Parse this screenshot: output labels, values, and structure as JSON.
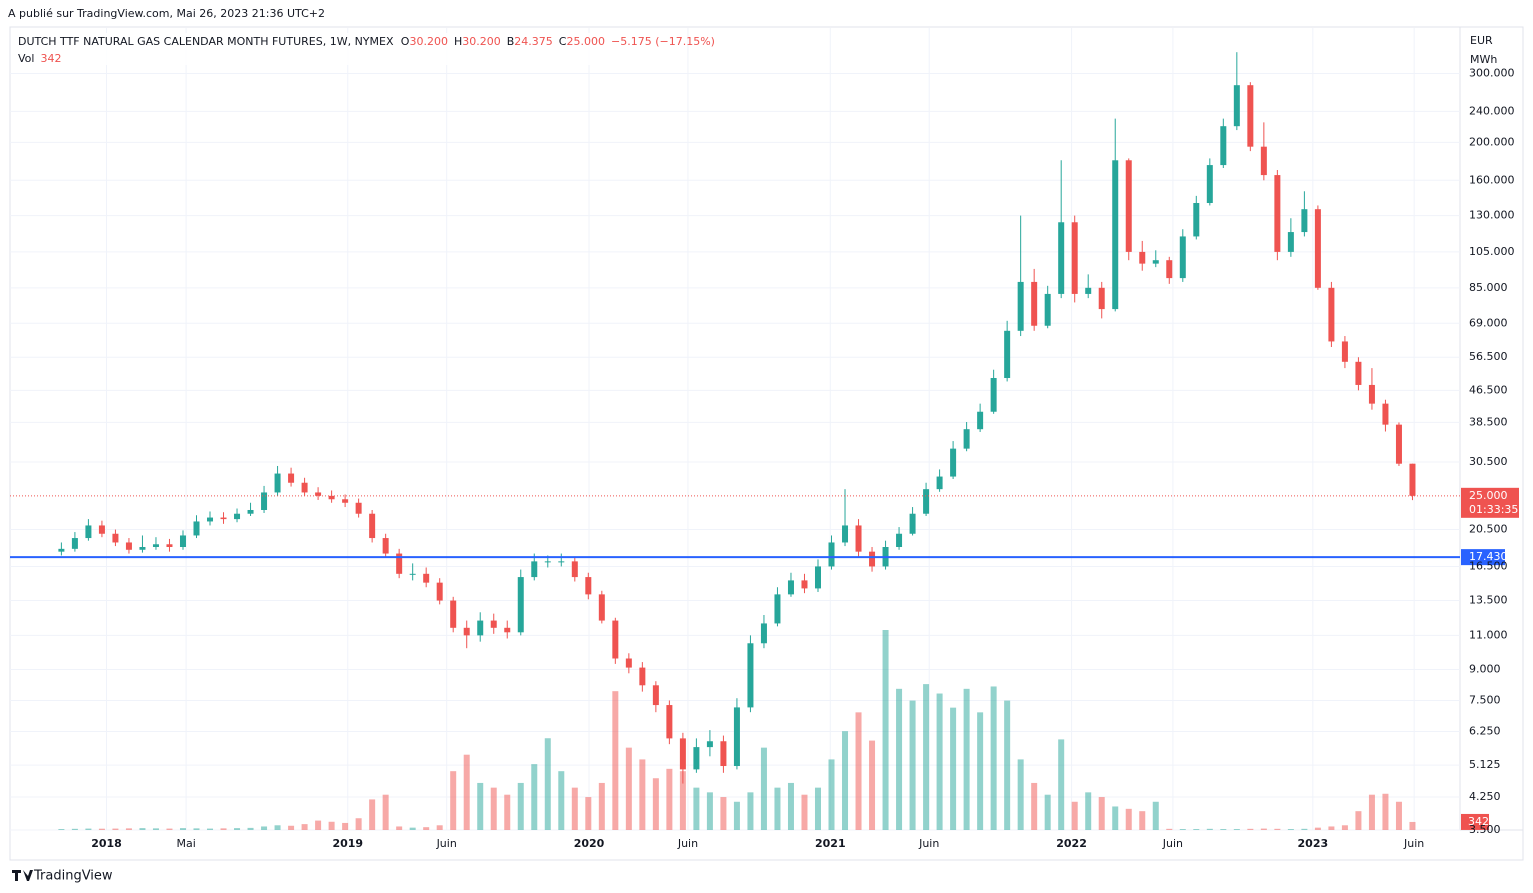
{
  "header": {
    "published": "A publié sur TradingView.com, Mai 26, 2023 21:36 UTC+2",
    "footer": "TradingView"
  },
  "chart_data": {
    "type": "candlestick",
    "title": "DUTCH TTF NATURAL GAS CALENDAR MONTH FUTURES, 1W, NYMEX",
    "quote": [
      {
        "key": "O",
        "text": "30.200"
      },
      {
        "key": "H",
        "text": "30.200"
      },
      {
        "key": "B",
        "text": "24.375"
      },
      {
        "key": "C",
        "text": "25.000"
      }
    ],
    "change": "−5.175 (−17.15%)",
    "volume_label": "Vol",
    "currency": "EUR",
    "unit": "MWh",
    "log_scale": true,
    "grid": true,
    "up_color": "#26a69a",
    "down_color": "#ef5350",
    "last_price": {
      "value": 25,
      "label": "25.000",
      "countdown": "01:33:35"
    },
    "hline": {
      "value": 17.43,
      "label": "17.430",
      "color": "#2962ff"
    },
    "xlim": [
      2017.6,
      2023.61
    ],
    "xticks": [
      {
        "value": 2018,
        "label": "2018"
      },
      {
        "value": 2018.33,
        "label": "Mai"
      },
      {
        "value": 2019,
        "label": "2019"
      },
      {
        "value": 2019.41,
        "label": "Juin"
      },
      {
        "value": 2020,
        "label": "2020"
      },
      {
        "value": 2020.41,
        "label": "Juin"
      },
      {
        "value": 2021,
        "label": "2021"
      },
      {
        "value": 2021.41,
        "label": "Juin"
      },
      {
        "value": 2022,
        "label": "2022"
      },
      {
        "value": 2022.42,
        "label": "Juin"
      },
      {
        "value": 2023,
        "label": "2023"
      },
      {
        "value": 2023.42,
        "label": "Juin"
      }
    ],
    "ylim": [
      3.5,
      392
    ],
    "yticks": [
      {
        "value": 300,
        "label": "300.000"
      },
      {
        "value": 240,
        "label": "240.000"
      },
      {
        "value": 200,
        "label": "200.000"
      },
      {
        "value": 160,
        "label": "160.000"
      },
      {
        "value": 130,
        "label": "130.000"
      },
      {
        "value": 105,
        "label": "105.000"
      },
      {
        "value": 85,
        "label": "85.000"
      },
      {
        "value": 69,
        "label": "69.000"
      },
      {
        "value": 56.5,
        "label": "56.500"
      },
      {
        "value": 46.5,
        "label": "46.500"
      },
      {
        "value": 38.5,
        "label": "38.500"
      },
      {
        "value": 30.5,
        "label": "30.500"
      },
      {
        "value": 20.5,
        "label": "20.500"
      },
      {
        "value": 16.5,
        "label": "16.500"
      },
      {
        "value": 13.5,
        "label": "13.500"
      },
      {
        "value": 11,
        "label": "11.000"
      },
      {
        "value": 9,
        "label": "9.000"
      },
      {
        "value": 7.5,
        "label": "7.500"
      },
      {
        "value": 6.25,
        "label": "6.250"
      },
      {
        "value": 5.125,
        "label": "5.125"
      },
      {
        "value": 4.25,
        "label": "4.250"
      },
      {
        "value": 3.5,
        "label": "3.500"
      }
    ],
    "x": [
      2017.813,
      2017.869,
      2017.925,
      2017.981,
      2018.037,
      2018.093,
      2018.149,
      2018.205,
      2018.261,
      2018.317,
      2018.373,
      2018.429,
      2018.485,
      2018.541,
      2018.597,
      2018.653,
      2018.709,
      2018.765,
      2018.821,
      2018.877,
      2018.933,
      2018.989,
      2019.045,
      2019.101,
      2019.157,
      2019.213,
      2019.269,
      2019.325,
      2019.381,
      2019.437,
      2019.493,
      2019.549,
      2019.605,
      2019.661,
      2019.717,
      2019.773,
      2019.829,
      2019.885,
      2019.941,
      2019.997,
      2020.053,
      2020.109,
      2020.165,
      2020.221,
      2020.277,
      2020.333,
      2020.389,
      2020.445,
      2020.501,
      2020.557,
      2020.613,
      2020.669,
      2020.725,
      2020.781,
      2020.837,
      2020.893,
      2020.949,
      2021.005,
      2021.061,
      2021.117,
      2021.173,
      2021.229,
      2021.285,
      2021.341,
      2021.397,
      2021.453,
      2021.509,
      2021.565,
      2021.621,
      2021.677,
      2021.733,
      2021.789,
      2021.845,
      2021.901,
      2021.957,
      2022.013,
      2022.069,
      2022.125,
      2022.181,
      2022.237,
      2022.293,
      2022.349,
      2022.405,
      2022.461,
      2022.517,
      2022.573,
      2022.629,
      2022.685,
      2022.741,
      2022.797,
      2022.853,
      2022.909,
      2022.965,
      2023.021,
      2023.077,
      2023.133,
      2023.189,
      2023.245,
      2023.301,
      2023.357,
      2023.413
    ],
    "open": [
      18,
      18.3,
      19.5,
      21,
      20,
      19,
      18.2,
      18.5,
      18.8,
      18.5,
      19.8,
      21.5,
      22,
      21.8,
      22.5,
      23,
      25.5,
      28.5,
      27,
      25.5,
      25,
      24.5,
      24,
      22.5,
      19.5,
      17.8,
      15.8,
      15.8,
      15,
      13.5,
      11.5,
      11,
      12,
      11.5,
      11.2,
      15.5,
      17,
      17,
      17,
      15.5,
      14,
      12,
      9.6,
      9.1,
      8.2,
      7.3,
      6,
      5,
      5.7,
      5.9,
      5.1,
      7.2,
      10.5,
      11.8,
      14,
      15.2,
      14.5,
      16.5,
      19,
      21,
      18,
      16.5,
      18.5,
      20,
      22.5,
      26,
      28,
      33,
      37,
      41,
      50,
      66,
      88,
      68,
      82,
      125,
      82,
      85,
      75,
      180,
      105,
      98,
      100,
      90,
      115,
      140,
      175,
      220,
      280,
      195,
      165,
      105,
      118,
      135,
      85,
      62,
      55,
      48,
      43,
      38,
      30.2
    ],
    "high": [
      19,
      20.2,
      21.8,
      21.6,
      20.5,
      19.5,
      19.8,
      19.6,
      19.4,
      20.4,
      22.3,
      22.8,
      22.7,
      23.2,
      24,
      26.5,
      29.8,
      29.5,
      27.8,
      26.3,
      25.8,
      25.2,
      24.6,
      23,
      20,
      18.3,
      16.8,
      16.4,
      15.4,
      13.8,
      12,
      12.6,
      12.5,
      12,
      16.2,
      17.8,
      17.6,
      17.8,
      17.4,
      15.9,
      14.3,
      12.2,
      9.9,
      9.4,
      8.4,
      7.5,
      6.2,
      6,
      6.3,
      6.1,
      7.6,
      11,
      12.4,
      14.6,
      15.9,
      15.8,
      17.2,
      19.8,
      26,
      21.8,
      18.5,
      19.2,
      20.8,
      23.4,
      27,
      29.2,
      34.5,
      38.6,
      43,
      52.5,
      70,
      130,
      95,
      86,
      180,
      130,
      92,
      88,
      230,
      182,
      112,
      106,
      102,
      120,
      146,
      182,
      230,
      340,
      285,
      225,
      170,
      128,
      150,
      138,
      88,
      64,
      56.5,
      53,
      44,
      38.5,
      30.2
    ],
    "low": [
      17.6,
      18,
      19.2,
      19.6,
      18.6,
      17.8,
      17.9,
      18.2,
      18,
      18.2,
      19.5,
      21,
      21.2,
      21.4,
      22.2,
      22.6,
      25,
      26.4,
      25,
      24.4,
      24,
      23.4,
      22,
      19,
      17.4,
      15.4,
      15.2,
      14.6,
      13.2,
      11.2,
      10.2,
      10.6,
      11.1,
      10.8,
      11,
      15.2,
      16.4,
      16.5,
      15.1,
      13.6,
      11.8,
      9.3,
      8.8,
      7.9,
      7,
      5.8,
      4.6,
      4.9,
      5.4,
      4.9,
      5,
      7,
      10.2,
      11.6,
      13.8,
      14.1,
      14.2,
      16.2,
      18.6,
      17.5,
      16,
      16.2,
      18.2,
      19.8,
      22.2,
      25.6,
      27.6,
      32.5,
      36.4,
      40.5,
      49,
      64,
      66,
      67,
      80,
      78,
      80,
      71,
      74,
      100,
      94,
      96,
      87,
      88,
      113,
      138,
      172,
      215,
      190,
      160,
      100,
      102,
      115,
      84,
      60,
      53,
      46.5,
      41.5,
      36.5,
      29.8,
      24.375
    ],
    "close": [
      18.3,
      19.5,
      21,
      20,
      19,
      18.2,
      18.5,
      18.8,
      18.5,
      19.8,
      21.5,
      22,
      21.8,
      22.5,
      23,
      25.5,
      28.5,
      27,
      25.5,
      25,
      24.5,
      24,
      22.5,
      19.5,
      17.8,
      15.8,
      15.8,
      15,
      13.5,
      11.5,
      11,
      12,
      11.5,
      11.2,
      15.5,
      17,
      17,
      17,
      15.5,
      14,
      12,
      9.6,
      9.1,
      8.2,
      7.3,
      6,
      5,
      5.7,
      5.9,
      5.1,
      7.2,
      10.5,
      11.8,
      14,
      15.2,
      14.5,
      16.5,
      19,
      21,
      18,
      16.5,
      18.5,
      20,
      22.5,
      26,
      28,
      33,
      37,
      41,
      50,
      66,
      88,
      68,
      82,
      125,
      82,
      85,
      75,
      180,
      105,
      98,
      100,
      90,
      115,
      140,
      175,
      220,
      280,
      195,
      165,
      105,
      118,
      135,
      85,
      62,
      55,
      48,
      43,
      38,
      30.2,
      25
    ],
    "volume": [
      40,
      50,
      60,
      55,
      60,
      70,
      80,
      70,
      60,
      80,
      70,
      60,
      70,
      80,
      90,
      150,
      200,
      180,
      250,
      400,
      350,
      300,
      500,
      1300,
      1500,
      150,
      100,
      120,
      200,
      2500,
      3200,
      2000,
      1800,
      1500,
      2000,
      2800,
      3900,
      2500,
      1800,
      1400,
      2000,
      5900,
      3500,
      3000,
      2200,
      2600,
      2500,
      1800,
      1600,
      1400,
      1200,
      1600,
      3500,
      1800,
      2000,
      1500,
      1800,
      3000,
      4200,
      5000,
      3800,
      8500,
      6000,
      5500,
      6200,
      5800,
      5200,
      6000,
      5000,
      6100,
      5500,
      3000,
      2000,
      1500,
      3850,
      1200,
      1600,
      1400,
      1000,
      900,
      800,
      1200,
      50,
      40,
      40,
      50,
      40,
      40,
      50,
      60,
      50,
      40,
      50,
      100,
      150,
      200,
      800,
      1500,
      1540,
      1200,
      342
    ]
  }
}
